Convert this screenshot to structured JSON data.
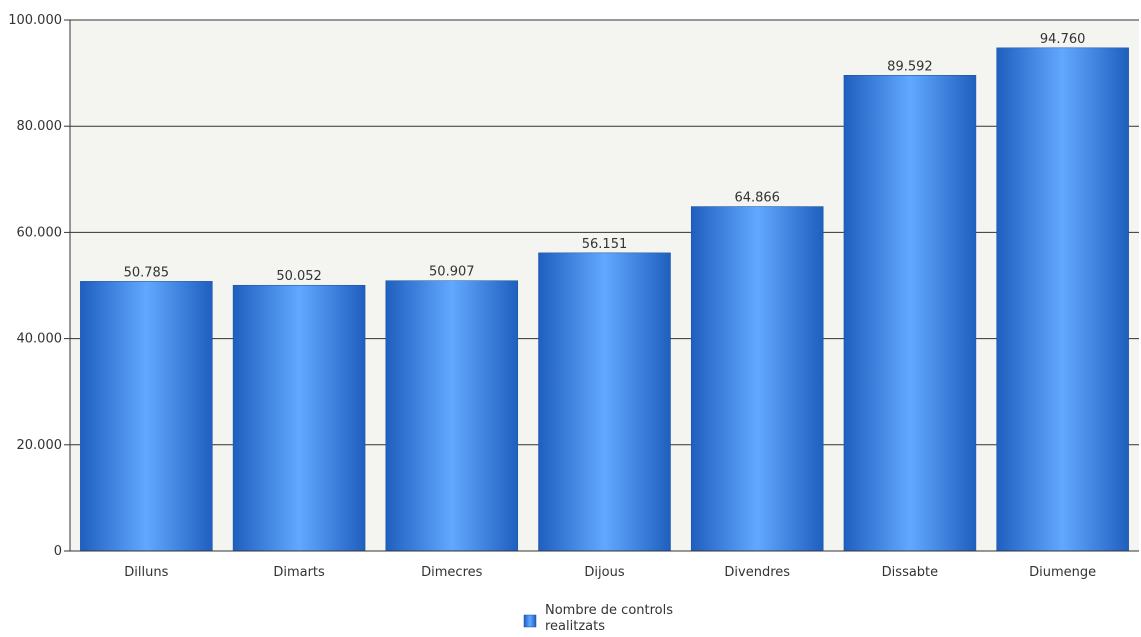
{
  "chart_data": {
    "type": "bar",
    "title": "",
    "xlabel": "",
    "ylabel": "",
    "categories": [
      "Dilluns",
      "Dimarts",
      "Dimecres",
      "Dijous",
      "Divendres",
      "Dissabte",
      "Diumenge"
    ],
    "series": [
      {
        "name": "Nombre de controls realitzats",
        "values": [
          50785,
          50052,
          50907,
          56151,
          64866,
          89592,
          94760
        ],
        "value_labels": [
          "50.785",
          "50.052",
          "50.907",
          "56.151",
          "64.866",
          "89.592",
          "94.760"
        ]
      }
    ],
    "ylim": [
      0,
      100000
    ],
    "yticks": [
      0,
      20000,
      40000,
      60000,
      80000,
      100000
    ],
    "ytick_labels": [
      "0",
      "20.000",
      "40.000",
      "60.000",
      "80.000",
      "100.000"
    ],
    "grid": true,
    "legend_position": "bottom-center",
    "legend_lines": [
      "Nombre de controls",
      "realitzats"
    ],
    "colors": {
      "bar_edge": "#1f5fbf",
      "bar_center": "#62a8ff",
      "plot_background": "#f4f4f0",
      "gridline": "#333333"
    }
  }
}
